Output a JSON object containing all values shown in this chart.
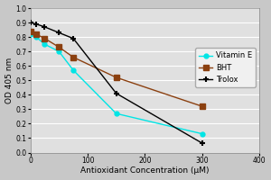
{
  "vitamin_e_x": [
    0,
    10,
    25,
    50,
    75,
    150,
    300
  ],
  "vitamin_e_y": [
    0.82,
    0.8,
    0.75,
    0.7,
    0.57,
    0.27,
    0.13
  ],
  "bht_x": [
    0,
    10,
    25,
    50,
    75,
    150,
    300
  ],
  "bht_y": [
    0.84,
    0.82,
    0.79,
    0.73,
    0.66,
    0.52,
    0.32
  ],
  "trolox_x": [
    0,
    10,
    25,
    50,
    75,
    150,
    300
  ],
  "trolox_y": [
    0.9,
    0.89,
    0.87,
    0.83,
    0.79,
    0.41,
    0.065
  ],
  "vitamin_e_color": "#00e5e5",
  "bht_color": "#8b4010",
  "trolox_color": "#000000",
  "xlabel": "Antioxidant Concentration (μM)",
  "ylabel": "OD 405 nm",
  "xlim": [
    0,
    400
  ],
  "ylim": [
    0,
    1.0
  ],
  "ytick_labels": [
    "0",
    "0.1",
    "0.2",
    "0.3",
    "0.4",
    "0.5",
    "0.6",
    "0.7",
    "0.8",
    "0.9",
    "1"
  ],
  "yticks": [
    0,
    0.1,
    0.2,
    0.3,
    0.4,
    0.5,
    0.6,
    0.7,
    0.8,
    0.9,
    1.0
  ],
  "xticks": [
    0,
    100,
    200,
    300,
    400
  ],
  "outer_bg_color": "#c8c8c8",
  "plot_bg_color": "#e0e0e0",
  "legend_bg_color": "#f0f0f0",
  "grid_color": "#ffffff",
  "legend_labels": [
    "Vitamin E",
    "BHT",
    "Trolox"
  ]
}
